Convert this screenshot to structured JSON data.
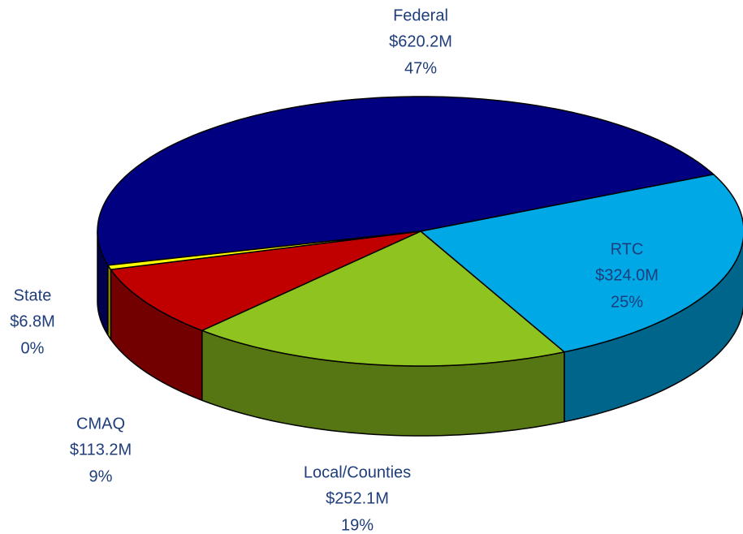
{
  "chart_data": {
    "type": "pie3d",
    "categories": [
      "Federal",
      "RTC",
      "Local/Counties",
      "CMAQ",
      "State"
    ],
    "values": [
      620.2,
      324.0,
      252.1,
      113.2,
      6.8
    ],
    "value_labels": [
      "$620.2M",
      "$324.0M",
      "$252.1M",
      "$113.2M",
      "$6.8M"
    ],
    "percent_labels": [
      "47%",
      "25%",
      "19%",
      "9%",
      "0%"
    ],
    "colors": [
      "#000080",
      "#00a8e6",
      "#8fc31f",
      "#c00000",
      "#ffff00"
    ]
  }
}
